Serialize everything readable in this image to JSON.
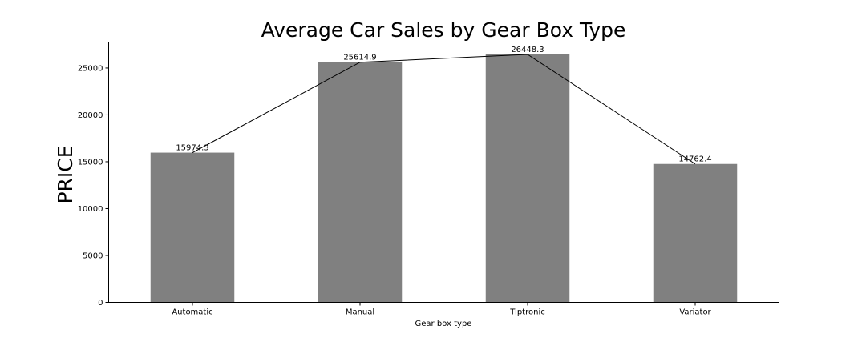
{
  "chart_data": {
    "type": "bar",
    "title": "Average Car Sales by Gear Box Type",
    "xlabel": "Gear box type",
    "ylabel": "PRICE",
    "categories": [
      "Automatic",
      "Manual",
      "Tiptronic",
      "Variator"
    ],
    "values": [
      15974.3,
      25614.9,
      26448.3,
      14762.4
    ],
    "value_labels": [
      "15974.3",
      "25614.9",
      "26448.3",
      "14762.4"
    ],
    "overlay_line": true,
    "ylim": [
      0,
      27771.7
    ],
    "yticks": [
      0,
      5000,
      10000,
      15000,
      20000,
      25000
    ],
    "ytick_labels": [
      "0",
      "5000",
      "10000",
      "15000",
      "20000",
      "25000"
    ],
    "grid": false,
    "colors": {
      "bar": "#808080",
      "line": "#000000",
      "axes": "#000000"
    }
  }
}
